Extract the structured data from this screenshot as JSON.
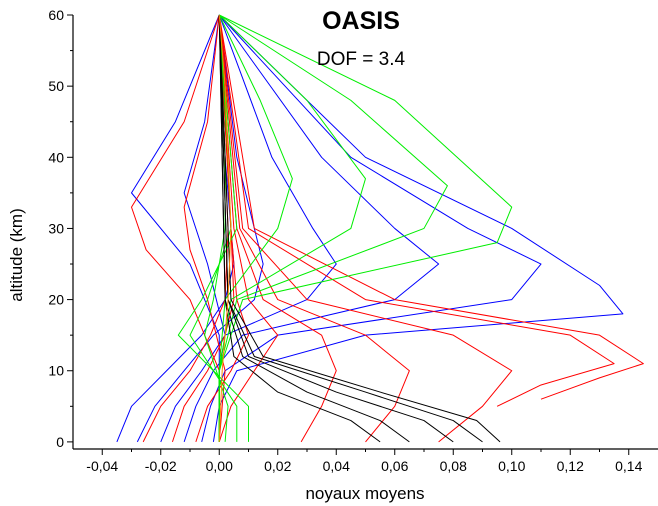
{
  "chart_data": {
    "type": "line",
    "title": "OASIS",
    "subtitle": "DOF = 3.4",
    "xlabel": "noyaux moyens",
    "ylabel": "altitude (km)",
    "xlim": [
      -0.05,
      0.15
    ],
    "ylim": [
      -1,
      60
    ],
    "x_ticks": [
      "-0,04",
      "-0,02",
      "0,00",
      "0,02",
      "0,04",
      "0,06",
      "0,08",
      "0,10",
      "0,12",
      "0,14"
    ],
    "y_ticks": [
      "0",
      "10",
      "20",
      "30",
      "40",
      "50",
      "60"
    ],
    "grid": false,
    "legend": "none",
    "colors": {
      "blue": "#0000ff",
      "red": "#ff0000",
      "green": "#00ee00",
      "black": "#000000",
      "orange": "#ff8800"
    },
    "series": [
      {
        "color": "blue",
        "values": [
          [
            -0.035,
            0
          ],
          [
            -0.03,
            5
          ],
          [
            -0.018,
            10
          ],
          [
            -0.006,
            15
          ],
          [
            0.002,
            20
          ],
          [
            0.005,
            25
          ],
          [
            0.004,
            30
          ],
          [
            0.002,
            40
          ],
          [
            0.0,
            60
          ]
        ]
      },
      {
        "color": "blue",
        "values": [
          [
            -0.028,
            0
          ],
          [
            -0.022,
            5
          ],
          [
            -0.012,
            10
          ],
          [
            -0.002,
            15
          ],
          [
            0.012,
            20
          ],
          [
            0.015,
            25
          ],
          [
            0.012,
            30
          ],
          [
            0.006,
            40
          ],
          [
            0.0,
            60
          ]
        ]
      },
      {
        "color": "blue",
        "values": [
          [
            -0.02,
            0
          ],
          [
            -0.015,
            5
          ],
          [
            -0.006,
            10
          ],
          [
            0.002,
            15
          ],
          [
            0.03,
            20
          ],
          [
            0.04,
            25
          ],
          [
            0.032,
            30
          ],
          [
            0.018,
            40
          ],
          [
            0.0,
            60
          ]
        ]
      },
      {
        "color": "blue",
        "values": [
          [
            -0.012,
            0
          ],
          [
            -0.008,
            5
          ],
          [
            -0.002,
            10
          ],
          [
            0.008,
            15
          ],
          [
            0.06,
            20
          ],
          [
            0.075,
            25
          ],
          [
            0.06,
            30
          ],
          [
            0.035,
            40
          ],
          [
            0.0,
            60
          ]
        ]
      },
      {
        "color": "blue",
        "values": [
          [
            -0.006,
            0
          ],
          [
            -0.003,
            5
          ],
          [
            0.002,
            10
          ],
          [
            0.02,
            15
          ],
          [
            0.1,
            20
          ],
          [
            0.11,
            25
          ],
          [
            0.085,
            30
          ],
          [
            0.045,
            40
          ],
          [
            0.0,
            60
          ]
        ]
      },
      {
        "color": "blue",
        "values": [
          [
            -0.002,
            0
          ],
          [
            0.0,
            5
          ],
          [
            0.006,
            10
          ],
          [
            0.05,
            15
          ],
          [
            0.138,
            18
          ],
          [
            0.13,
            22
          ],
          [
            0.1,
            30
          ],
          [
            0.05,
            40
          ],
          [
            0.0,
            60
          ]
        ]
      },
      {
        "color": "blue",
        "values": [
          [
            0.0,
            0
          ],
          [
            0.0,
            5
          ],
          [
            0.0,
            10
          ],
          [
            0.0,
            15
          ],
          [
            -0.01,
            25
          ],
          [
            -0.03,
            35
          ],
          [
            -0.015,
            45
          ],
          [
            0.0,
            60
          ]
        ]
      },
      {
        "color": "blue",
        "values": [
          [
            0.0,
            0
          ],
          [
            0.0,
            5
          ],
          [
            0.0,
            10
          ],
          [
            0.002,
            15
          ],
          [
            -0.004,
            25
          ],
          [
            -0.012,
            35
          ],
          [
            -0.005,
            45
          ],
          [
            0.0,
            60
          ]
        ]
      },
      {
        "color": "red",
        "values": [
          [
            -0.026,
            0
          ],
          [
            -0.02,
            5
          ],
          [
            -0.01,
            10
          ],
          [
            -0.003,
            15
          ],
          [
            0.002,
            20
          ],
          [
            0.003,
            30
          ],
          [
            0.002,
            40
          ],
          [
            0.0,
            60
          ]
        ]
      },
      {
        "color": "red",
        "values": [
          [
            -0.016,
            0
          ],
          [
            -0.012,
            5
          ],
          [
            -0.004,
            10
          ],
          [
            0.002,
            15
          ],
          [
            0.005,
            20
          ],
          [
            0.004,
            30
          ],
          [
            0.0,
            60
          ]
        ]
      },
      {
        "color": "red",
        "values": [
          [
            -0.008,
            0
          ],
          [
            -0.004,
            5
          ],
          [
            0.004,
            10
          ],
          [
            0.01,
            15
          ],
          [
            0.006,
            20
          ],
          [
            0.004,
            30
          ],
          [
            0.0,
            60
          ]
        ]
      },
      {
        "color": "red",
        "values": [
          [
            0.0,
            0
          ],
          [
            0.004,
            5
          ],
          [
            0.012,
            10
          ],
          [
            0.02,
            15
          ],
          [
            0.01,
            20
          ],
          [
            0.005,
            30
          ],
          [
            0.0,
            60
          ]
        ]
      },
      {
        "color": "red",
        "values": [
          [
            0.028,
            0
          ],
          [
            0.035,
            5
          ],
          [
            0.04,
            10
          ],
          [
            0.035,
            15
          ],
          [
            0.015,
            20
          ],
          [
            0.006,
            30
          ],
          [
            0.0,
            60
          ]
        ]
      },
      {
        "color": "red",
        "values": [
          [
            0.05,
            0
          ],
          [
            0.06,
            5
          ],
          [
            0.065,
            10
          ],
          [
            0.05,
            15
          ],
          [
            0.02,
            20
          ],
          [
            0.007,
            30
          ],
          [
            0.0,
            60
          ]
        ]
      },
      {
        "color": "red",
        "values": [
          [
            0.075,
            0
          ],
          [
            0.09,
            5
          ],
          [
            0.1,
            10
          ],
          [
            0.08,
            15
          ],
          [
            0.03,
            20
          ],
          [
            0.008,
            30
          ],
          [
            0.0,
            60
          ]
        ]
      },
      {
        "color": "red",
        "values": [
          [
            0.095,
            5
          ],
          [
            0.11,
            8
          ],
          [
            0.135,
            11
          ],
          [
            0.12,
            15
          ],
          [
            0.05,
            20
          ],
          [
            0.01,
            30
          ],
          [
            0.0,
            60
          ]
        ]
      },
      {
        "color": "red",
        "values": [
          [
            0.11,
            6
          ],
          [
            0.13,
            9
          ],
          [
            0.145,
            11
          ],
          [
            0.13,
            15
          ],
          [
            0.06,
            20
          ],
          [
            0.012,
            30
          ],
          [
            0.0,
            60
          ]
        ]
      },
      {
        "color": "red",
        "values": [
          [
            0.0,
            0
          ],
          [
            0.0,
            10
          ],
          [
            -0.01,
            20
          ],
          [
            -0.025,
            27
          ],
          [
            -0.03,
            33
          ],
          [
            -0.012,
            45
          ],
          [
            0.0,
            60
          ]
        ]
      },
      {
        "color": "red",
        "values": [
          [
            0.0,
            0
          ],
          [
            0.002,
            10
          ],
          [
            -0.004,
            20
          ],
          [
            -0.01,
            27
          ],
          [
            -0.012,
            33
          ],
          [
            -0.004,
            45
          ],
          [
            0.0,
            60
          ]
        ]
      },
      {
        "color": "green",
        "values": [
          [
            0.002,
            0
          ],
          [
            0.003,
            5
          ],
          [
            -0.005,
            15
          ],
          [
            -0.002,
            20
          ],
          [
            0.002,
            30
          ],
          [
            0.002,
            40
          ],
          [
            0.0,
            60
          ]
        ]
      },
      {
        "color": "green",
        "values": [
          [
            0.006,
            0
          ],
          [
            0.006,
            5
          ],
          [
            -0.01,
            15
          ],
          [
            -0.004,
            20
          ],
          [
            0.004,
            30
          ],
          [
            0.003,
            40
          ],
          [
            0.0,
            60
          ]
        ]
      },
      {
        "color": "green",
        "values": [
          [
            0.01,
            0
          ],
          [
            0.01,
            5
          ],
          [
            -0.014,
            15
          ],
          [
            -0.006,
            20
          ],
          [
            0.006,
            30
          ],
          [
            0.004,
            40
          ],
          [
            0.0,
            60
          ]
        ]
      },
      {
        "color": "green",
        "values": [
          [
            0.0,
            0
          ],
          [
            0.0,
            10
          ],
          [
            0.002,
            20
          ],
          [
            0.02,
            30
          ],
          [
            0.025,
            37
          ],
          [
            0.014,
            48
          ],
          [
            0.0,
            60
          ]
        ]
      },
      {
        "color": "green",
        "values": [
          [
            0.0,
            0
          ],
          [
            0.0,
            10
          ],
          [
            0.004,
            20
          ],
          [
            0.045,
            30
          ],
          [
            0.05,
            37
          ],
          [
            0.03,
            48
          ],
          [
            0.0,
            60
          ]
        ]
      },
      {
        "color": "green",
        "values": [
          [
            0.0,
            0
          ],
          [
            0.0,
            10
          ],
          [
            0.006,
            20
          ],
          [
            0.07,
            30
          ],
          [
            0.078,
            36
          ],
          [
            0.045,
            48
          ],
          [
            0.0,
            60
          ]
        ]
      },
      {
        "color": "green",
        "values": [
          [
            0.0,
            0
          ],
          [
            0.0,
            10
          ],
          [
            0.008,
            20
          ],
          [
            0.095,
            28
          ],
          [
            0.1,
            33
          ],
          [
            0.06,
            48
          ],
          [
            0.0,
            60
          ]
        ]
      },
      {
        "color": "black",
        "values": [
          [
            0.055,
            0
          ],
          [
            0.045,
            3
          ],
          [
            0.02,
            7
          ],
          [
            0.005,
            12
          ],
          [
            0.002,
            20
          ],
          [
            0.0,
            60
          ]
        ]
      },
      {
        "color": "black",
        "values": [
          [
            0.065,
            0
          ],
          [
            0.055,
            3
          ],
          [
            0.03,
            7
          ],
          [
            0.008,
            12
          ],
          [
            0.002,
            20
          ],
          [
            0.0,
            60
          ]
        ]
      },
      {
        "color": "black",
        "values": [
          [
            0.08,
            0
          ],
          [
            0.07,
            3
          ],
          [
            0.04,
            7
          ],
          [
            0.01,
            12
          ],
          [
            0.003,
            20
          ],
          [
            0.0,
            60
          ]
        ]
      },
      {
        "color": "black",
        "values": [
          [
            0.09,
            0
          ],
          [
            0.08,
            3
          ],
          [
            0.05,
            7
          ],
          [
            0.012,
            12
          ],
          [
            0.003,
            20
          ],
          [
            0.0,
            60
          ]
        ]
      },
      {
        "color": "black",
        "values": [
          [
            0.096,
            0
          ],
          [
            0.088,
            3
          ],
          [
            0.055,
            7
          ],
          [
            0.015,
            12
          ],
          [
            0.004,
            20
          ],
          [
            0.0,
            60
          ]
        ]
      },
      {
        "color": "orange",
        "values": [
          [
            0.0,
            0
          ],
          [
            0.001,
            10
          ],
          [
            0.003,
            20
          ],
          [
            0.004,
            30
          ],
          [
            0.003,
            40
          ],
          [
            0.002,
            50
          ],
          [
            0.0,
            60
          ]
        ]
      }
    ]
  }
}
